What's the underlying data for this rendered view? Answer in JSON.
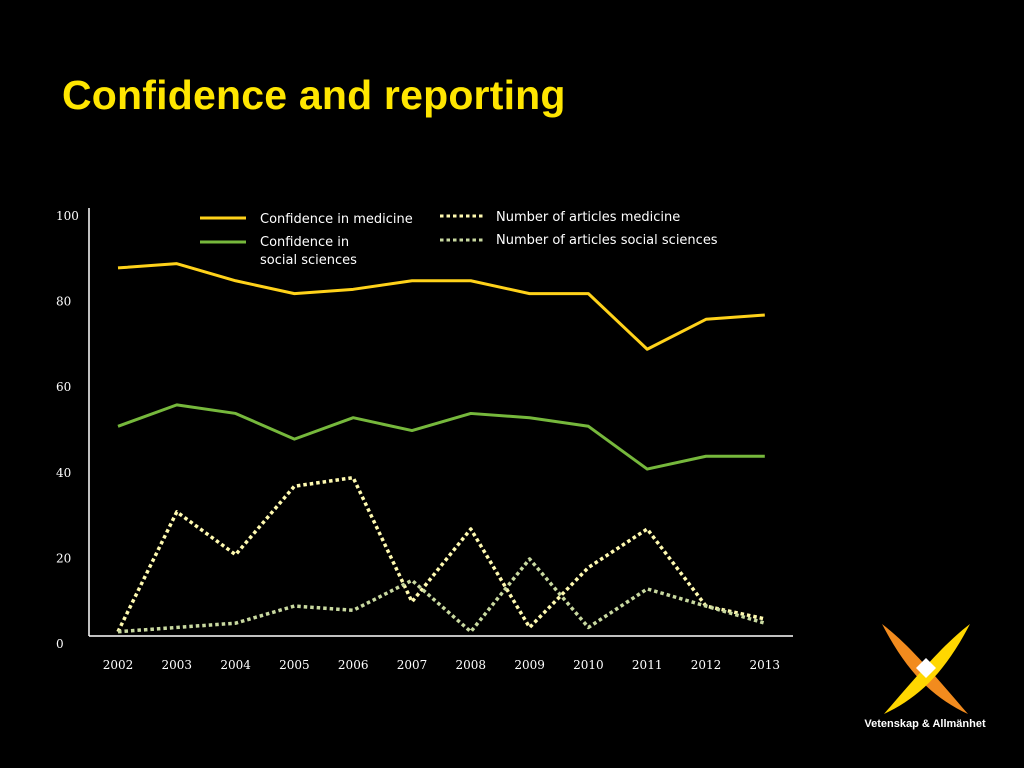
{
  "slide": {
    "title": "Confidence and reporting"
  },
  "chart_data": {
    "type": "line",
    "x": [
      "2002",
      "2003",
      "2004",
      "2005",
      "2006",
      "2007",
      "2008",
      "2009",
      "2010",
      "2011",
      "2012",
      "2013"
    ],
    "ylim": [
      0,
      100
    ],
    "yticks": [
      "0",
      "20",
      "40",
      "60",
      "80",
      "100"
    ],
    "legend_position": "top",
    "grid": false,
    "series": [
      {
        "name": "Confidence in medicine",
        "style": "solid",
        "color": "#ffd21a",
        "values": [
          86,
          87,
          83,
          80,
          81,
          83,
          83,
          80,
          80,
          67,
          74,
          75
        ]
      },
      {
        "name": "Confidence in social sciences",
        "legend_lines": [
          "Confidence in",
          "social sciences"
        ],
        "style": "solid",
        "color": "#76b83c",
        "values": [
          49,
          54,
          52,
          46,
          51,
          48,
          52,
          51,
          49,
          39,
          42,
          42
        ]
      },
      {
        "name": "Number of articles medicine",
        "style": "dotted",
        "color": "#fffab0",
        "values": [
          1,
          29,
          19,
          35,
          37,
          8,
          25,
          2,
          16,
          25,
          7,
          4
        ]
      },
      {
        "name": "Number of articles social sciences",
        "style": "dotted",
        "color": "#c9d9a0",
        "values": [
          1,
          2,
          3,
          7,
          6,
          13,
          1,
          18,
          2,
          11,
          7,
          3
        ]
      }
    ]
  },
  "logo": {
    "name": "vetenskap-och-allmanhet-logo",
    "text": "Vetenskap & Allmänhet",
    "colors": [
      "#ffd700",
      "#f28b1e"
    ]
  }
}
